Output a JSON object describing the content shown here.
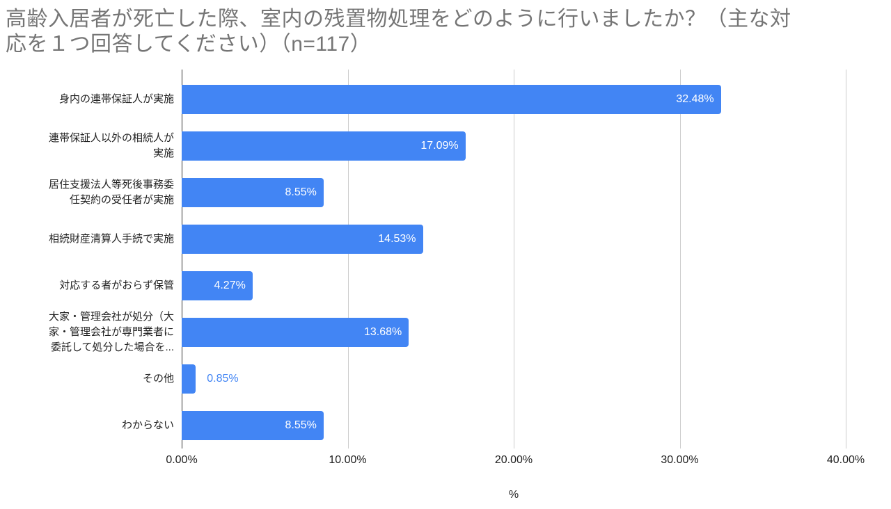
{
  "title_lines": [
    "高齢入居者が死亡した際、室内の残置物処理をどのように行いましたか？（主な対",
    "応を１つ回答してください）（n=117）"
  ],
  "chart_data": {
    "type": "bar",
    "orientation": "horizontal",
    "title": "高齢入居者が死亡した際、室内の残置物処理をどのように行いましたか？（主な対応を１つ回答してください）（n=117）",
    "n_label": "n=117",
    "categories": [
      "身内の連帯保証人が実施",
      "連帯保証人以外の相続人が実施",
      "居住支援法人等死後事務委任契約の受任者が実施",
      "相続財産清算人手続で実施",
      "対応する者がおらず保管",
      "大家・管理会社が処分（大家・管理会社が専門業者に委託して処分した場合を...",
      "その他",
      "わからない"
    ],
    "category_display_lines": [
      [
        "身内の連帯保証人が実施"
      ],
      [
        "連帯保証人以外の相続人が",
        "実施"
      ],
      [
        "居住支援法人等死後事務委",
        "任契約の受任者が実施"
      ],
      [
        "相続財産清算人手続で実施"
      ],
      [
        "対応する者がおらず保管"
      ],
      [
        "大家・管理会社が処分（大",
        "家・管理会社が専門業者に",
        "委託して処分した場合を..."
      ],
      [
        "その他"
      ],
      [
        "わからない"
      ]
    ],
    "values": [
      32.48,
      17.09,
      8.55,
      14.53,
      4.27,
      13.68,
      0.85,
      8.55
    ],
    "value_labels": [
      "32.48%",
      "17.09%",
      "8.55%",
      "14.53%",
      "4.27%",
      "13.68%",
      "0.85%",
      "8.55%"
    ],
    "x_ticks": [
      "0.00%",
      "10.00%",
      "20.00%",
      "30.00%",
      "40.00%"
    ],
    "x_tick_values": [
      0,
      10,
      20,
      30,
      40
    ],
    "xlim": [
      0,
      40
    ],
    "xlabel": "%",
    "grid": true,
    "legend": "none",
    "colors": {
      "bar": "#4285f4",
      "value_label_inside": "#ffffff",
      "value_label_outside": "#4285f4",
      "title": "#757575",
      "axis_text": "#212121",
      "gridline": "#cccccc",
      "zero_line": "#333333",
      "background": "#ffffff"
    }
  }
}
